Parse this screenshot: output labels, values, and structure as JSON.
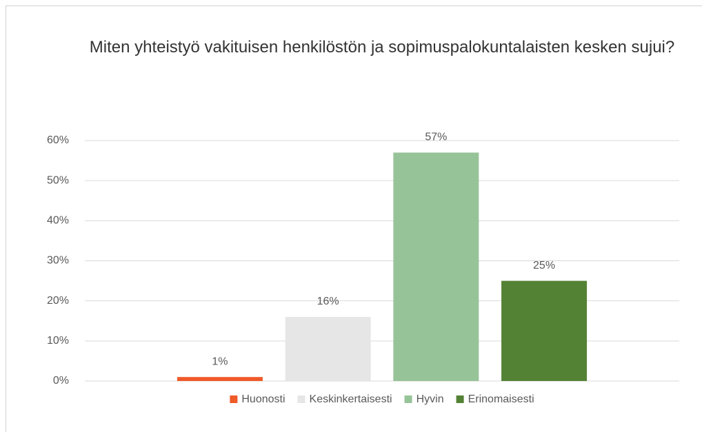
{
  "chart_data": {
    "type": "bar",
    "title": "Miten yhteistyö vakituisen henkilöstön ja sopimuspalokuntalaisten kesken sujui?",
    "series": [
      {
        "name": "Huonosti",
        "color": "#ef5a28",
        "values": [
          1
        ],
        "value_labels": [
          "1%"
        ]
      },
      {
        "name": "Keskinkertaisesti",
        "color": "#e7e6e6",
        "values": [
          16
        ],
        "value_labels": [
          "16%"
        ]
      },
      {
        "name": "Hyvin",
        "color": "#97c398",
        "values": [
          57
        ],
        "value_labels": [
          "57%"
        ]
      },
      {
        "name": "Erinomaisesti",
        "color": "#548235",
        "values": [
          25
        ],
        "value_labels": [
          "25%"
        ]
      }
    ],
    "ylim": [
      0,
      60
    ],
    "yticks": [
      {
        "value": 0,
        "label": "0%"
      },
      {
        "value": 10,
        "label": "10%"
      },
      {
        "value": 20,
        "label": "20%"
      },
      {
        "value": 30,
        "label": "30%"
      },
      {
        "value": 40,
        "label": "40%"
      },
      {
        "value": 50,
        "label": "50%"
      },
      {
        "value": 60,
        "label": "60%"
      }
    ],
    "grid": true,
    "legend": "bottom"
  }
}
